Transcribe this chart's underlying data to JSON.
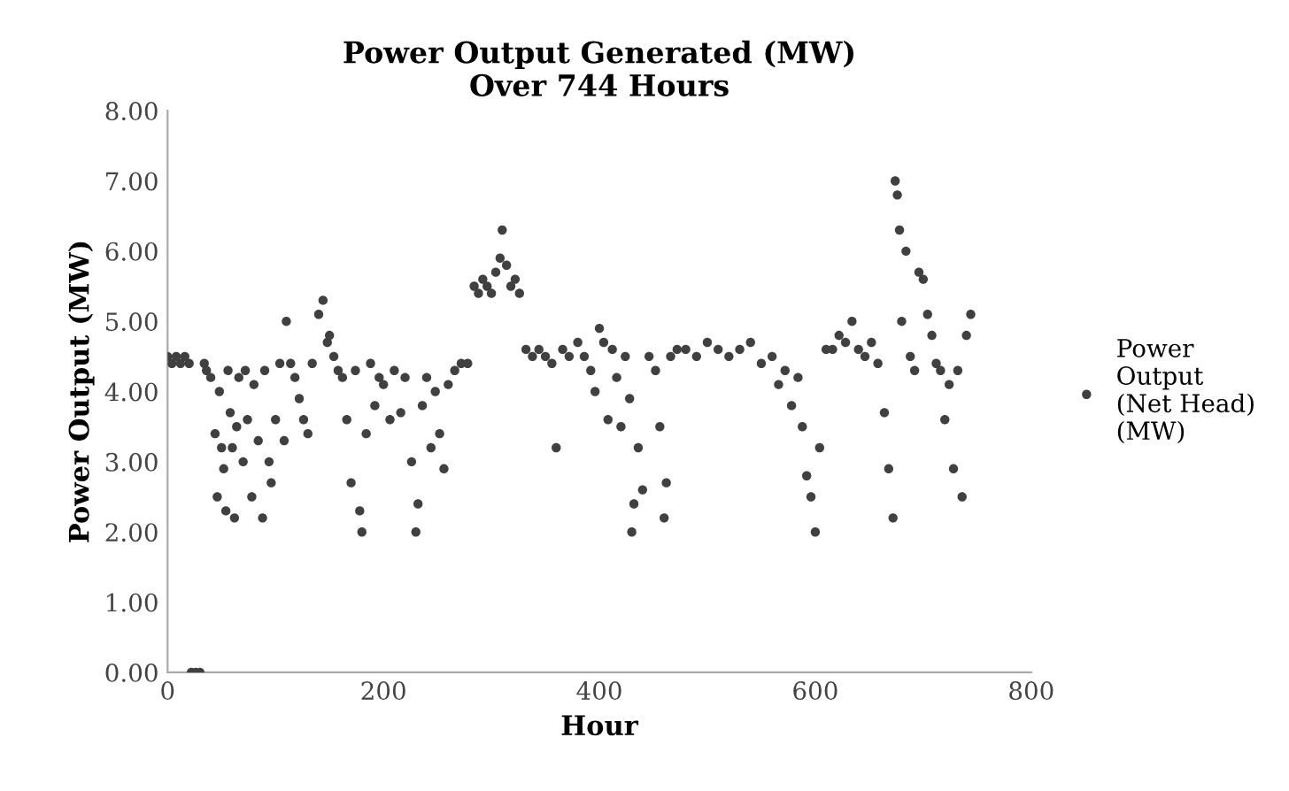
{
  "chart_data": {
    "type": "scatter",
    "title": "Power Output Generated (MW)\nOver 744 Hours",
    "xlabel": "Hour",
    "ylabel": "Power Output (MW)",
    "xlim": [
      0,
      800
    ],
    "xticks": [
      0,
      200,
      400,
      600,
      800
    ],
    "ylim": [
      0,
      8
    ],
    "yticks": [
      {
        "value": 0,
        "label": "0.00"
      },
      {
        "value": 1,
        "label": "1.00"
      },
      {
        "value": 2,
        "label": "2.00"
      },
      {
        "value": 3,
        "label": "3.00"
      },
      {
        "value": 4,
        "label": "4.00"
      },
      {
        "value": 5,
        "label": "5.00"
      },
      {
        "value": 6,
        "label": "6.00"
      },
      {
        "value": 7,
        "label": "7.00"
      },
      {
        "value": 8,
        "label": "8.00"
      }
    ],
    "grid": false,
    "legend": "right",
    "marker": "circle",
    "series": [
      {
        "name": "Power Output (Net Head) (MW)",
        "color": "#404040",
        "x": [
          0,
          4,
          8,
          12,
          16,
          20,
          22,
          26,
          30,
          34,
          36,
          40,
          44,
          46,
          48,
          50,
          52,
          54,
          56,
          58,
          60,
          62,
          64,
          66,
          70,
          72,
          74,
          78,
          80,
          84,
          88,
          90,
          94,
          96,
          100,
          104,
          108,
          110,
          114,
          118,
          122,
          126,
          130,
          134,
          140,
          144,
          148,
          150,
          154,
          158,
          162,
          166,
          170,
          174,
          178,
          180,
          184,
          188,
          192,
          196,
          200,
          206,
          210,
          216,
          220,
          226,
          230,
          232,
          236,
          240,
          244,
          248,
          252,
          256,
          260,
          266,
          272,
          278,
          284,
          288,
          292,
          296,
          300,
          304,
          308,
          310,
          314,
          318,
          322,
          326,
          332,
          338,
          344,
          350,
          356,
          360,
          366,
          372,
          380,
          386,
          392,
          396,
          400,
          404,
          408,
          412,
          416,
          420,
          424,
          428,
          430,
          432,
          436,
          440,
          446,
          452,
          456,
          460,
          462,
          466,
          472,
          480,
          490,
          500,
          510,
          520,
          530,
          540,
          550,
          560,
          566,
          572,
          578,
          584,
          588,
          592,
          596,
          600,
          604,
          610,
          616,
          622,
          628,
          634,
          640,
          646,
          652,
          658,
          664,
          668,
          672,
          674,
          676,
          678,
          680,
          684,
          688,
          692,
          696,
          700,
          704,
          708,
          712,
          716,
          720,
          724,
          728,
          732,
          736,
          740,
          744
        ],
        "values": [
          4.5,
          4.4,
          4.5,
          4.4,
          4.5,
          4.4,
          0.0,
          0.0,
          0.0,
          4.4,
          4.3,
          4.2,
          3.4,
          2.5,
          4.0,
          3.2,
          2.9,
          2.3,
          4.3,
          3.7,
          3.2,
          2.2,
          3.5,
          4.2,
          3.0,
          4.3,
          3.6,
          2.5,
          4.1,
          3.3,
          2.2,
          4.3,
          3.0,
          2.7,
          3.6,
          4.4,
          3.3,
          5.0,
          4.4,
          4.2,
          3.9,
          3.6,
          3.4,
          4.4,
          5.1,
          5.3,
          4.7,
          4.8,
          4.5,
          4.3,
          4.2,
          3.6,
          2.7,
          4.3,
          2.3,
          2.0,
          3.4,
          4.4,
          3.8,
          4.2,
          4.1,
          3.6,
          4.3,
          3.7,
          4.2,
          3.0,
          2.0,
          2.4,
          3.8,
          4.2,
          3.2,
          4.0,
          3.4,
          2.9,
          4.1,
          4.3,
          4.4,
          4.4,
          5.5,
          5.4,
          5.6,
          5.5,
          5.4,
          5.7,
          5.9,
          6.3,
          5.8,
          5.5,
          5.6,
          5.4,
          4.6,
          4.5,
          4.6,
          4.5,
          4.4,
          3.2,
          4.6,
          4.5,
          4.7,
          4.5,
          4.3,
          4.0,
          4.9,
          4.7,
          3.6,
          4.6,
          4.2,
          3.5,
          4.5,
          3.9,
          2.0,
          2.4,
          3.2,
          2.6,
          4.5,
          4.3,
          3.5,
          2.2,
          2.7,
          4.5,
          4.6,
          4.6,
          4.5,
          4.7,
          4.6,
          4.5,
          4.6,
          4.7,
          4.4,
          4.5,
          4.1,
          4.3,
          3.8,
          4.2,
          3.5,
          2.8,
          2.5,
          2.0,
          3.2,
          4.6,
          4.6,
          4.8,
          4.7,
          5.0,
          4.6,
          4.5,
          4.7,
          4.4,
          3.7,
          2.9,
          2.2,
          7.0,
          6.8,
          6.3,
          5.0,
          6.0,
          4.5,
          4.3,
          5.7,
          5.6,
          5.1,
          4.8,
          4.4,
          4.3,
          3.6,
          4.1,
          2.9,
          4.3,
          2.5,
          4.8,
          5.1
        ]
      }
    ]
  }
}
